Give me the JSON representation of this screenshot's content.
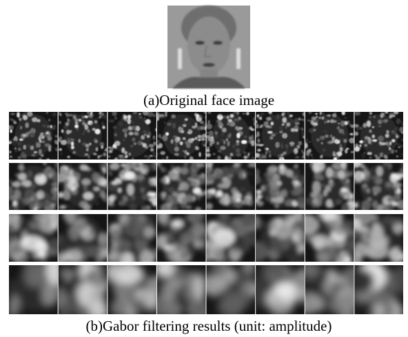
{
  "figure": {
    "caption_a": "(a)Original face image",
    "caption_b": "(b)Gabor filtering results (unit: amplitude)"
  }
}
